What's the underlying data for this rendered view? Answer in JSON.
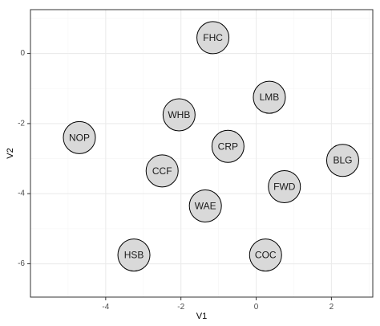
{
  "chart_data": {
    "type": "scatter",
    "xlabel": "V1",
    "ylabel": "V2",
    "xlim": [
      -6.0,
      3.1
    ],
    "ylim": [
      -6.95,
      1.25
    ],
    "x_ticks": [
      {
        "value": -4,
        "label": "-4"
      },
      {
        "value": -2,
        "label": "-2"
      },
      {
        "value": 0,
        "label": "0"
      },
      {
        "value": 2,
        "label": "2"
      }
    ],
    "y_ticks": [
      {
        "value": 0,
        "label": "0"
      },
      {
        "value": -2,
        "label": "-2"
      },
      {
        "value": -4,
        "label": "-4"
      },
      {
        "value": -6,
        "label": "-6"
      }
    ],
    "grid": true,
    "points": [
      {
        "label": "FHC",
        "x": -1.15,
        "y": 0.45
      },
      {
        "label": "LMB",
        "x": 0.35,
        "y": -1.25
      },
      {
        "label": "WHB",
        "x": -2.05,
        "y": -1.75
      },
      {
        "label": "NOP",
        "x": -4.7,
        "y": -2.4
      },
      {
        "label": "CRP",
        "x": -0.75,
        "y": -2.65
      },
      {
        "label": "BLG",
        "x": 2.3,
        "y": -3.05
      },
      {
        "label": "CCF",
        "x": -2.5,
        "y": -3.35
      },
      {
        "label": "FWD",
        "x": 0.75,
        "y": -3.8
      },
      {
        "label": "WAE",
        "x": -1.35,
        "y": -4.35
      },
      {
        "label": "HSB",
        "x": -3.25,
        "y": -5.75
      },
      {
        "label": "COC",
        "x": 0.25,
        "y": -5.75
      }
    ]
  },
  "colors": {
    "panel_background": "#ffffff",
    "panel_border": "#333333",
    "grid_major": "#ebebeb",
    "grid_minor": "#f5f5f5",
    "point_fill": "#d9d9d9",
    "point_stroke": "#000000",
    "label_text": "#1a1a1a",
    "tick_text": "#4d4d4d"
  }
}
